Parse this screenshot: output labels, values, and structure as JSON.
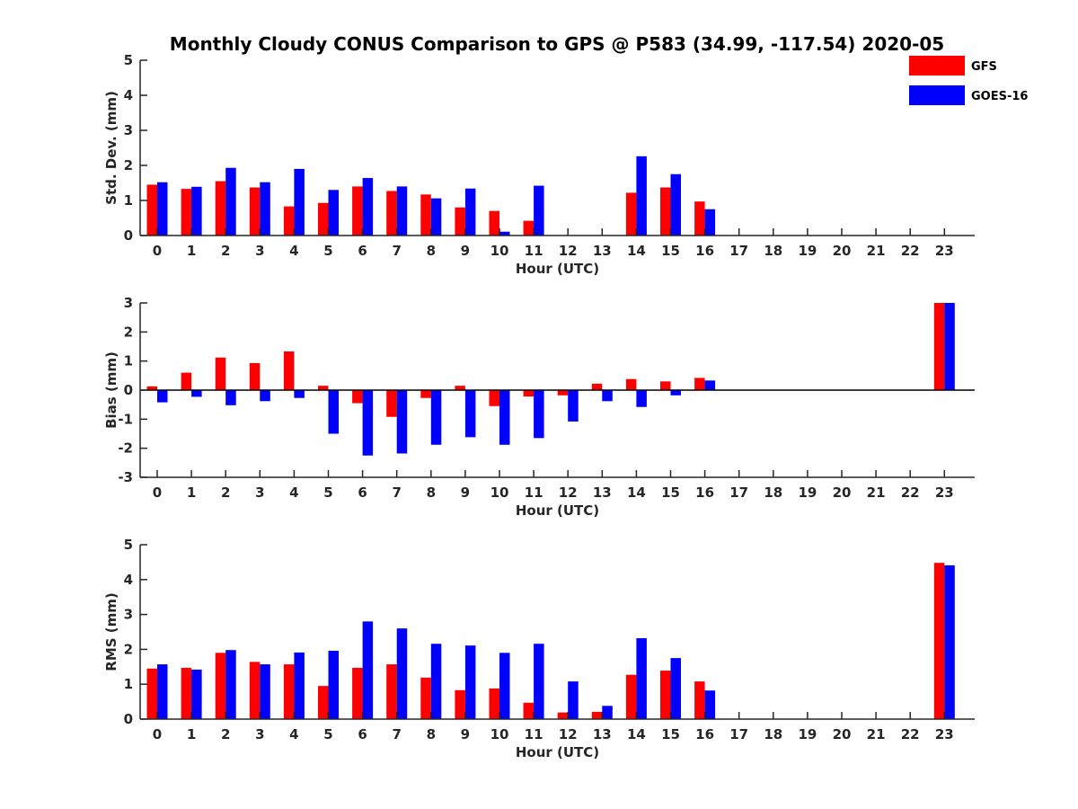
{
  "title": "Monthly Cloudy CONUS Comparison to GPS @ P583 (34.99, -117.54) 2020-05",
  "legend": [
    {
      "name": "GFS",
      "color": "#ff0000"
    },
    {
      "name": "GOES-16",
      "color": "#0000ff"
    }
  ],
  "chart_data": [
    {
      "type": "bar",
      "id": "std",
      "xlabel": "Hour (UTC)",
      "ylabel": "Std. Dev. (mm)",
      "ylim": [
        0,
        5
      ],
      "yticks": [
        0,
        1,
        2,
        3,
        4,
        5
      ],
      "categories": [
        "0",
        "1",
        "2",
        "3",
        "4",
        "5",
        "6",
        "7",
        "8",
        "9",
        "10",
        "11",
        "12",
        "13",
        "14",
        "15",
        "16",
        "17",
        "18",
        "19",
        "20",
        "21",
        "22",
        "23"
      ],
      "series": [
        {
          "name": "GFS",
          "color": "#ff0000",
          "values": [
            1.45,
            1.33,
            1.55,
            1.37,
            0.83,
            0.93,
            1.4,
            1.27,
            1.17,
            0.8,
            0.7,
            0.42,
            null,
            null,
            1.22,
            1.37,
            0.97,
            null,
            null,
            null,
            null,
            null,
            null,
            null
          ]
        },
        {
          "name": "GOES-16",
          "color": "#0000ff",
          "values": [
            1.52,
            1.39,
            1.93,
            1.52,
            1.9,
            1.3,
            1.64,
            1.4,
            1.06,
            1.34,
            0.11,
            1.42,
            null,
            null,
            2.26,
            1.75,
            0.75,
            null,
            null,
            null,
            null,
            null,
            null,
            null
          ]
        }
      ]
    },
    {
      "type": "bar",
      "id": "bias",
      "xlabel": "Hour (UTC)",
      "ylabel": "Bias (mm)",
      "ylim": [
        -3,
        3
      ],
      "yticks": [
        -3,
        -2,
        -1,
        0,
        1,
        2,
        3
      ],
      "zeroline": true,
      "categories": [
        "0",
        "1",
        "2",
        "3",
        "4",
        "5",
        "6",
        "7",
        "8",
        "9",
        "10",
        "11",
        "12",
        "13",
        "14",
        "15",
        "16",
        "17",
        "18",
        "19",
        "20",
        "21",
        "22",
        "23"
      ],
      "series": [
        {
          "name": "GFS",
          "color": "#ff0000",
          "values": [
            0.13,
            0.6,
            1.12,
            0.93,
            1.33,
            0.15,
            -0.45,
            -0.92,
            -0.27,
            0.15,
            -0.55,
            -0.22,
            -0.18,
            0.22,
            0.38,
            0.3,
            0.42,
            null,
            null,
            null,
            null,
            null,
            null,
            3.0
          ]
        },
        {
          "name": "GOES-16",
          "color": "#0000ff",
          "values": [
            -0.42,
            -0.23,
            -0.52,
            -0.38,
            -0.27,
            -1.5,
            -2.25,
            -2.18,
            -1.88,
            -1.62,
            -1.88,
            -1.65,
            -1.08,
            -0.38,
            -0.58,
            -0.18,
            0.33,
            null,
            null,
            null,
            null,
            null,
            null,
            3.0
          ]
        }
      ]
    },
    {
      "type": "bar",
      "id": "rms",
      "xlabel": "Hour (UTC)",
      "ylabel": "RMS (mm)",
      "ylim": [
        0,
        5
      ],
      "yticks": [
        0,
        1,
        2,
        3,
        4,
        5
      ],
      "categories": [
        "0",
        "1",
        "2",
        "3",
        "4",
        "5",
        "6",
        "7",
        "8",
        "9",
        "10",
        "11",
        "12",
        "13",
        "14",
        "15",
        "16",
        "17",
        "18",
        "19",
        "20",
        "21",
        "22",
        "23"
      ],
      "series": [
        {
          "name": "GFS",
          "color": "#ff0000",
          "values": [
            1.45,
            1.47,
            1.9,
            1.64,
            1.57,
            0.95,
            1.47,
            1.57,
            1.19,
            0.83,
            0.88,
            0.47,
            0.19,
            0.21,
            1.27,
            1.39,
            1.08,
            null,
            null,
            null,
            null,
            null,
            null,
            4.48
          ]
        },
        {
          "name": "GOES-16",
          "color": "#0000ff",
          "values": [
            1.57,
            1.42,
            1.98,
            1.57,
            1.91,
            1.96,
            2.8,
            2.6,
            2.16,
            2.11,
            1.9,
            2.16,
            1.08,
            0.38,
            2.32,
            1.75,
            0.82,
            null,
            null,
            null,
            null,
            null,
            null,
            4.41
          ]
        }
      ]
    }
  ]
}
